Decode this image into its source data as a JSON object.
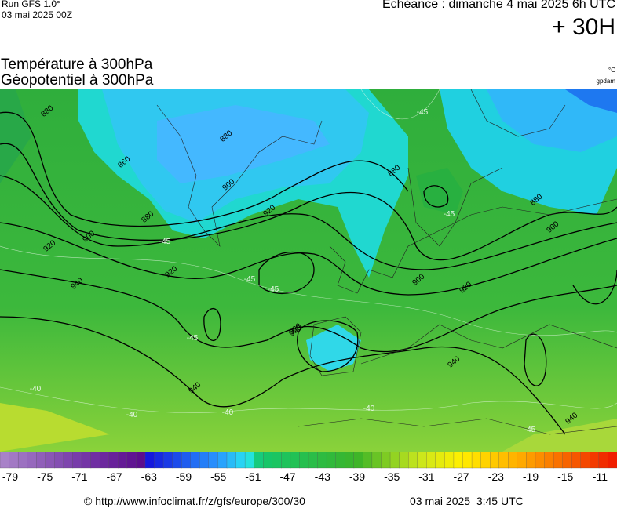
{
  "header": {
    "run": "Run GFS 1.0°",
    "date": "03 mai 2025 00Z",
    "echeance": "Echéance : dimanche 4 mai 2025 6h UTC",
    "lead": "+ 30H",
    "title_temperature": "Température à 300hPa",
    "title_geopotential": "Géopotentiel à 300hPa",
    "unit_temperature": "°C",
    "unit_geopotential": "gpdam"
  },
  "map": {
    "contour_labels": [
      "860",
      "880",
      "900",
      "920",
      "880",
      "900",
      "920",
      "880",
      "900",
      "920",
      "940",
      "880",
      "900",
      "920",
      "900",
      "940",
      "940",
      "920",
      "940",
      "880",
      "-45",
      "-45",
      "-45",
      "-45",
      "-45",
      "-40",
      "-40",
      "-40",
      "-40",
      "-45",
      "-45"
    ]
  },
  "scale": {
    "labels": [
      -79,
      -75,
      -71,
      -67,
      -63,
      -59,
      -55,
      -51,
      -47,
      -43,
      -39,
      -35,
      -31,
      -27,
      -23,
      -19,
      -15,
      -11
    ]
  },
  "footer": {
    "url": "© http://www.infoclimat.fr/z/gfs/europe/300/30",
    "time": "03 mai 2025  3:45 UTC"
  }
}
